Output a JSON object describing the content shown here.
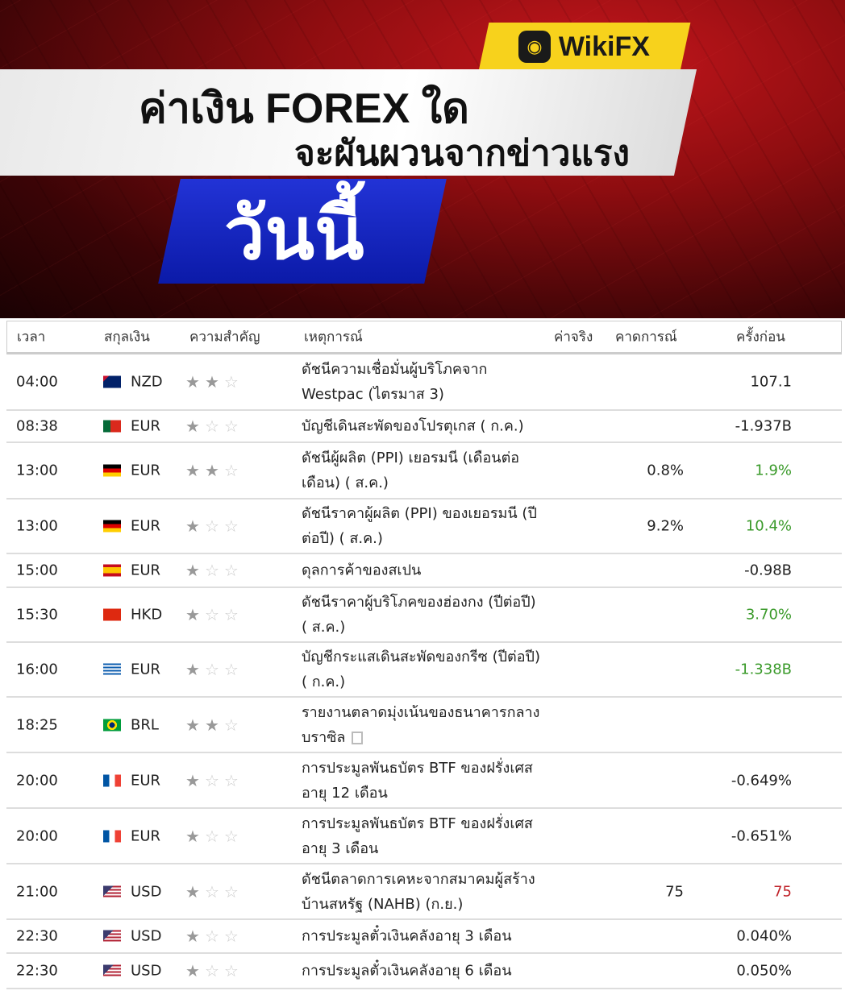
{
  "banner": {
    "logo_text": "WikiFX",
    "title_line1": "ค่าเงิน FOREX ใด",
    "title_line2": "จะผันผวนจากข่าวแรง",
    "today": "วันนี้"
  },
  "colors": {
    "positive": "#3a9a2a",
    "negative": "#c0232a",
    "banner_red": "#8e0d10",
    "banner_blue": "#1526c0",
    "logo_yellow": "#f7d21c"
  },
  "table": {
    "headers": {
      "time": "เวลา",
      "currency": "สกุลเงิน",
      "importance": "ความสำคัญ",
      "event": "เหตุการณ์",
      "actual": "ค่าจริง",
      "forecast": "คาดการณ์",
      "previous": "ครั้งก่อน"
    },
    "rows": [
      {
        "time": "04:00",
        "flag": "nz",
        "currency": "NZD",
        "stars": 2,
        "event": "ดัชนีความเชื่อมั่นผู้บริโภคจาก Westpac (ไตรมาส 3)",
        "actual": "",
        "forecast": "",
        "previous": "107.1",
        "prev_color": ""
      },
      {
        "time": "08:38",
        "flag": "pt",
        "currency": "EUR",
        "stars": 1,
        "event": "บัญชีเดินสะพัดของโปรตุเกส ( ก.ค.)",
        "actual": "",
        "forecast": "",
        "previous": "-1.937B",
        "prev_color": ""
      },
      {
        "time": "13:00",
        "flag": "de",
        "currency": "EUR",
        "stars": 2,
        "event": "ดัชนีผู้ผลิต (PPI) เยอรมนี (เดือนต่อเดือน) ( ส.ค.)",
        "actual": "",
        "forecast": "0.8%",
        "previous": "1.9%",
        "prev_color": "green"
      },
      {
        "time": "13:00",
        "flag": "de",
        "currency": "EUR",
        "stars": 1,
        "event": "ดัชนีราคาผู้ผลิต (PPI) ของเยอรมนี (ปีต่อปี) ( ส.ค.)",
        "actual": "",
        "forecast": "9.2%",
        "previous": "10.4%",
        "prev_color": "green"
      },
      {
        "time": "15:00",
        "flag": "es",
        "currency": "EUR",
        "stars": 1,
        "event": "ดุลการค้าของสเปน",
        "actual": "",
        "forecast": "",
        "previous": "-0.98B",
        "prev_color": ""
      },
      {
        "time": "15:30",
        "flag": "hk",
        "currency": "HKD",
        "stars": 1,
        "event": "ดัชนีราคาผู้บริโภคของฮ่องกง (ปีต่อปี) ( ส.ค.)",
        "actual": "",
        "forecast": "",
        "previous": "3.70%",
        "prev_color": "green"
      },
      {
        "time": "16:00",
        "flag": "gr",
        "currency": "EUR",
        "stars": 1,
        "event": "บัญชีกระแสเดินสะพัดของกรีซ (ปีต่อปี) ( ก.ค.)",
        "actual": "",
        "forecast": "",
        "previous": "-1.338B",
        "prev_color": "green"
      },
      {
        "time": "18:25",
        "flag": "br",
        "currency": "BRL",
        "stars": 2,
        "event": "รายงานตลาดมุ่งเน้นของธนาคารกลางบราซิล",
        "actual": "",
        "forecast": "",
        "previous": "",
        "prev_color": "",
        "doc": true
      },
      {
        "time": "20:00",
        "flag": "fr",
        "currency": "EUR",
        "stars": 1,
        "event": "การประมูลพันธบัตร BTF ของฝรั่งเศสอายุ 12 เดือน",
        "actual": "",
        "forecast": "",
        "previous": "-0.649%",
        "prev_color": ""
      },
      {
        "time": "20:00",
        "flag": "fr",
        "currency": "EUR",
        "stars": 1,
        "event": "การประมูลพันธบัตร BTF ของฝรั่งเศสอายุ 3 เดือน",
        "actual": "",
        "forecast": "",
        "previous": "-0.651%",
        "prev_color": ""
      },
      {
        "time": "21:00",
        "flag": "us",
        "currency": "USD",
        "stars": 1,
        "event": "ดัชนีตลาดการเคหะจากสมาคมผู้สร้างบ้านสหรัฐ (NAHB) (ก.ย.)",
        "actual": "",
        "forecast": "75",
        "previous": "75",
        "prev_color": "red"
      },
      {
        "time": "22:30",
        "flag": "us",
        "currency": "USD",
        "stars": 1,
        "event": "การประมูลตั๋วเงินคลังอายุ 3 เดือน",
        "actual": "",
        "forecast": "",
        "previous": "0.040%",
        "prev_color": ""
      },
      {
        "time": "22:30",
        "flag": "us",
        "currency": "USD",
        "stars": 1,
        "event": "การประมูลตั๋วเงินคลังอายุ 6 เดือน",
        "actual": "",
        "forecast": "",
        "previous": "0.050%",
        "prev_color": ""
      }
    ]
  }
}
